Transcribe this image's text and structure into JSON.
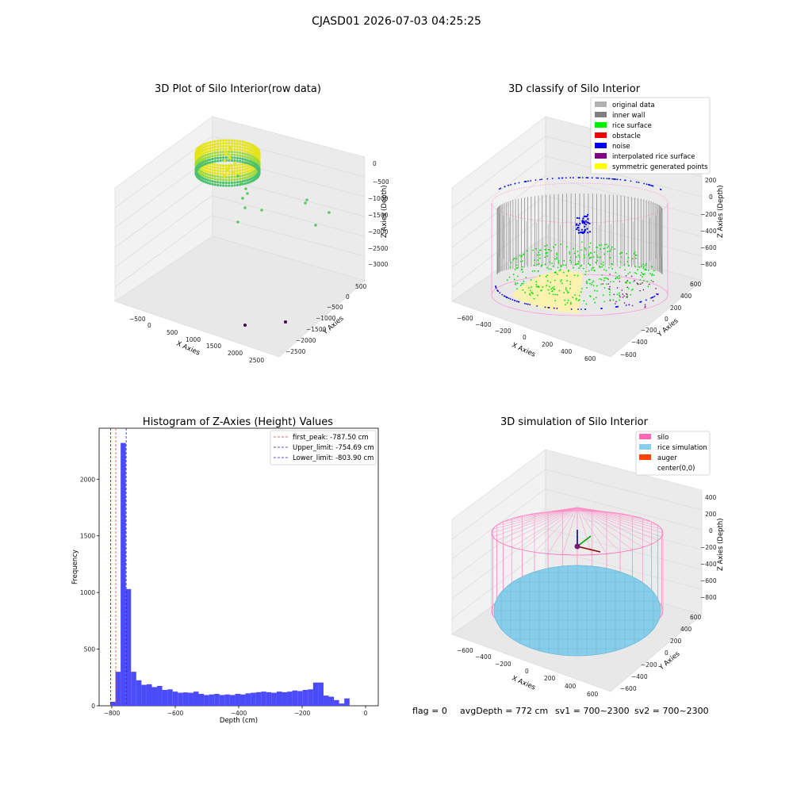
{
  "figure": {
    "suptitle": "CJASD01 2026-07-03 04:25:25",
    "status": {
      "flag": "flag = 0",
      "avg_depth": "avgDepth = 772 cm",
      "sv1": "sv1 = 700~2300",
      "sv2": "sv2 = 700~2300"
    }
  },
  "chart_data": [
    {
      "type": "scatter",
      "title": "3D Plot of Silo Interior(row data)",
      "xlabel": "X Axies",
      "ylabel": "Y Axies",
      "zlabel": "Z Axies (Depth)",
      "x_ticks": [
        "−500",
        "0",
        "500",
        "1000",
        "1500",
        "2000",
        "2500"
      ],
      "y_ticks": [
        "500",
        "0",
        "−500",
        "−1000",
        "−1500",
        "−2000",
        "−2500"
      ],
      "z_ticks": [
        "0",
        "−500",
        "−1000",
        "−1500",
        "−2000",
        "−2500",
        "−3000"
      ],
      "xlim": [
        -650,
        2700
      ],
      "ylim": [
        -2700,
        650
      ],
      "zlim": [
        -3100,
        100
      ],
      "colormap": "viridis",
      "outlier_points": [
        {
          "x": 1450,
          "y": -350,
          "z": -1000
        },
        {
          "x": 1350,
          "y": -250,
          "z": -1100
        },
        {
          "x": 1700,
          "y": -300,
          "z": -1250
        },
        {
          "x": 1600,
          "y": -500,
          "z": -1500
        },
        {
          "x": 900,
          "y": -200,
          "z": -1350
        },
        {
          "x": 350,
          "y": 100,
          "z": -1400
        },
        {
          "x": 300,
          "y": 200,
          "z": -1200
        },
        {
          "x": 2100,
          "y": -2500,
          "z": -3000
        },
        {
          "x": 2450,
          "y": -2300,
          "z": -3050
        }
      ]
    },
    {
      "type": "scatter",
      "title": "3D classify of Silo Interior",
      "xlabel": "X Axies",
      "ylabel": "Y Axies",
      "zlabel": "Z Axies (Depth)",
      "x_ticks": [
        "−600",
        "−400",
        "−200",
        "0",
        "200",
        "400",
        "600"
      ],
      "y_ticks": [
        "600",
        "400",
        "200",
        "0",
        "−200",
        "−400",
        "−600"
      ],
      "z_ticks": [
        "200",
        "0",
        "−200",
        "−400",
        "−600",
        "−800"
      ],
      "xlim": [
        -700,
        700
      ],
      "ylim": [
        -700,
        700
      ],
      "zlim": [
        -900,
        300
      ],
      "legend_position": "upper right",
      "legend": [
        {
          "label": "original data",
          "color": "#b0b0b0"
        },
        {
          "label": "inner wall",
          "color": "#808080"
        },
        {
          "label": "rice surface",
          "color": "#00ee00"
        },
        {
          "label": "obstacle",
          "color": "#ee0000"
        },
        {
          "label": "noise",
          "color": "#0000ee"
        },
        {
          "label": "interpolated rice surface",
          "color": "#800080"
        },
        {
          "label": "symmetric generated points",
          "color": "#ffff00"
        }
      ]
    },
    {
      "type": "bar",
      "title": "Histogram of Z-Axies (Height) Values",
      "xlabel": "Depth (cm)",
      "ylabel": "Frequency",
      "xlim": [
        -840,
        40
      ],
      "ylim": [
        0,
        2450
      ],
      "x_ticks": [
        -800,
        -600,
        -400,
        -200,
        0
      ],
      "y_ticks": [
        0,
        500,
        1000,
        1500,
        2000
      ],
      "bin_width": 16.4,
      "bin_start": -805,
      "values": [
        35,
        300,
        2320,
        1030,
        300,
        225,
        185,
        190,
        165,
        175,
        140,
        145,
        125,
        115,
        118,
        115,
        125,
        105,
        95,
        100,
        105,
        95,
        100,
        95,
        105,
        100,
        110,
        115,
        120,
        125,
        120,
        115,
        125,
        120,
        125,
        135,
        130,
        140,
        145,
        205,
        205,
        90,
        80,
        50,
        20,
        65
      ],
      "bar_color": "#4b4bfa",
      "legend_position": "upper right",
      "vlines": [
        {
          "label": "first_peak: -787.50 cm",
          "x": -787.5,
          "color": "#e04040"
        },
        {
          "label": "Upper_limit: -754.69 cm",
          "x": -754.69,
          "color": "#2020c0"
        },
        {
          "label": "Lower_limit: -803.90 cm",
          "x": -803.9,
          "color": "#2020c0"
        }
      ]
    },
    {
      "type": "scatter",
      "title": "3D simulation of Silo Interior",
      "xlabel": "X Axies",
      "ylabel": "Y Axies",
      "zlabel": "Z Axies (Depth)",
      "x_ticks": [
        "−600",
        "−400",
        "−200",
        "0",
        "200",
        "400",
        "600"
      ],
      "y_ticks": [
        "600",
        "400",
        "200",
        "0",
        "−200",
        "−400",
        "−600"
      ],
      "z_ticks": [
        "400",
        "200",
        "0",
        "−200",
        "−400",
        "−600",
        "−800"
      ],
      "xlim": [
        -700,
        700
      ],
      "ylim": [
        -700,
        700
      ],
      "zlim": [
        -900,
        500
      ],
      "legend_position": "upper right",
      "legend": [
        {
          "label": "silo",
          "color": "#ff69b4"
        },
        {
          "label": "rice simulation",
          "color": "#87ceeb"
        },
        {
          "label": "auger",
          "color": "#ff4500"
        },
        {
          "label": "center(0,0)",
          "color": ""
        }
      ]
    }
  ]
}
